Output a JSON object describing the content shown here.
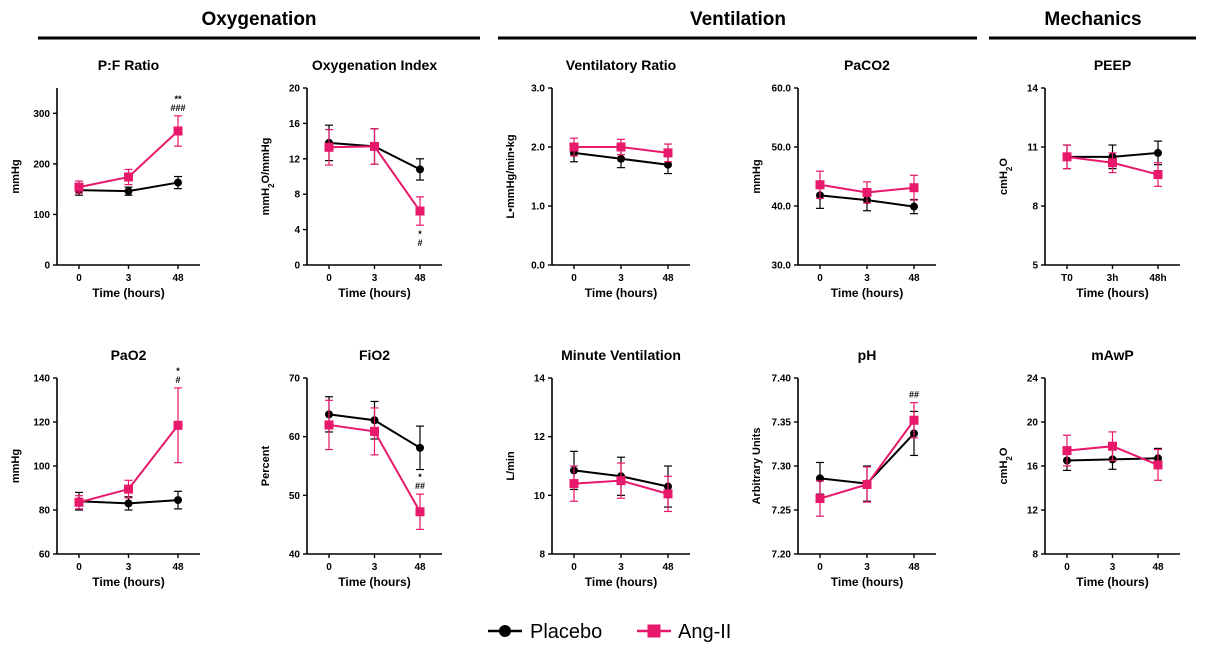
{
  "sections": [
    {
      "label": "Oxygenation"
    },
    {
      "label": "Ventilation"
    },
    {
      "label": "Mechanics"
    }
  ],
  "legend": [
    {
      "label": "Placebo",
      "color": "#000000",
      "marker": "circle"
    },
    {
      "label": "Ang-II",
      "color": "#e8186b",
      "marker": "square"
    }
  ],
  "colors": {
    "placebo": "#000000",
    "angii": "#e8186b"
  },
  "chart_data": [
    {
      "type": "line",
      "title": "P:F Ratio",
      "ylabel": "mmHg",
      "xlabel": "Time (hours)",
      "categories": [
        "0",
        "3",
        "48"
      ],
      "ylim": [
        0,
        350
      ],
      "yticks": [
        "0",
        "100",
        "200",
        "300"
      ],
      "ytick_values": [
        0,
        100,
        200,
        300
      ],
      "series": [
        {
          "name": "Placebo",
          "values": [
            148,
            146,
            163
          ],
          "err": [
            10,
            8,
            12
          ]
        },
        {
          "name": "Ang-II",
          "values": [
            154,
            174,
            265
          ],
          "err": [
            12,
            15,
            30
          ]
        }
      ],
      "annotations": [
        {
          "category": "48",
          "lines": [
            "**",
            "###"
          ]
        }
      ]
    },
    {
      "type": "line",
      "title": "Oxygenation Index",
      "ylabel": "mmH2O/mmHg",
      "ylabel_sub": "2",
      "xlabel": "Time (hours)",
      "categories": [
        "0",
        "3",
        "48"
      ],
      "ylim": [
        0,
        20
      ],
      "yticks": [
        "0",
        "4",
        "8",
        "12",
        "16",
        "20"
      ],
      "ytick_values": [
        0,
        4,
        8,
        12,
        16,
        20
      ],
      "series": [
        {
          "name": "Placebo",
          "values": [
            13.8,
            13.4,
            10.8
          ],
          "err": [
            2.0,
            2.0,
            1.2
          ]
        },
        {
          "name": "Ang-II",
          "values": [
            13.3,
            13.4,
            6.1
          ],
          "err": [
            2.0,
            2.0,
            1.6
          ]
        }
      ],
      "annotations": [
        {
          "category": "48",
          "lines": [
            "*",
            "#"
          ],
          "below": true
        }
      ]
    },
    {
      "type": "line",
      "title": "Ventilatory Ratio",
      "ylabel": "L•mmHg/min•kg",
      "xlabel": "Time (hours)",
      "categories": [
        "0",
        "3",
        "48"
      ],
      "ylim": [
        0,
        3
      ],
      "yticks": [
        "0.0",
        "1.0",
        "2.0",
        "3.0"
      ],
      "ytick_values": [
        0,
        1,
        2,
        3
      ],
      "series": [
        {
          "name": "Placebo",
          "values": [
            1.9,
            1.8,
            1.7
          ],
          "err": [
            0.15,
            0.15,
            0.15
          ]
        },
        {
          "name": "Ang-II",
          "values": [
            2.0,
            2.0,
            1.9
          ],
          "err": [
            0.15,
            0.13,
            0.15
          ]
        }
      ],
      "annotations": []
    },
    {
      "type": "line",
      "title": "PaCO2",
      "ylabel": "mmHg",
      "xlabel": "Time (hours)",
      "categories": [
        "0",
        "3",
        "48"
      ],
      "ylim": [
        30,
        60
      ],
      "yticks": [
        "30.0",
        "40.0",
        "50.0",
        "60.0"
      ],
      "ytick_values": [
        30,
        40,
        50,
        60
      ],
      "series": [
        {
          "name": "Placebo",
          "values": [
            41.8,
            41.0,
            39.9
          ],
          "err": [
            2.2,
            1.8,
            1.2
          ]
        },
        {
          "name": "Ang-II",
          "values": [
            43.6,
            42.3,
            43.1
          ],
          "err": [
            2.3,
            1.8,
            2.1
          ]
        }
      ],
      "annotations": []
    },
    {
      "type": "line",
      "title": "PEEP",
      "ylabel": "cmH2O",
      "ylabel_sub": "2",
      "xlabel": "Time (hours)",
      "categories": [
        "T0",
        "3h",
        "48h"
      ],
      "ylim": [
        5,
        14
      ],
      "yticks": [
        "5",
        "8",
        "11",
        "14"
      ],
      "ytick_values": [
        5,
        8,
        11,
        14
      ],
      "series": [
        {
          "name": "Placebo",
          "values": [
            10.5,
            10.5,
            10.7
          ],
          "err": [
            0.6,
            0.6,
            0.6
          ]
        },
        {
          "name": "Ang-II",
          "values": [
            10.5,
            10.2,
            9.6
          ],
          "err": [
            0.6,
            0.5,
            0.6
          ]
        }
      ],
      "annotations": []
    },
    {
      "type": "line",
      "title": "PaO2",
      "ylabel": "mmHg",
      "xlabel": "Time (hours)",
      "categories": [
        "0",
        "3",
        "48"
      ],
      "ylim": [
        60,
        140
      ],
      "yticks": [
        "60",
        "80",
        "100",
        "120",
        "140"
      ],
      "ytick_values": [
        60,
        80,
        100,
        120,
        140
      ],
      "series": [
        {
          "name": "Placebo",
          "values": [
            84,
            83,
            84.5
          ],
          "err": [
            4,
            3,
            4
          ]
        },
        {
          "name": "Ang-II",
          "values": [
            83.5,
            89.5,
            118.5
          ],
          "err": [
            3,
            4,
            17
          ]
        }
      ],
      "annotations": [
        {
          "category": "48",
          "lines": [
            "*",
            "#"
          ]
        }
      ]
    },
    {
      "type": "line",
      "title": "FiO2",
      "ylabel": "Percent",
      "xlabel": "Time (hours)",
      "categories": [
        "0",
        "3",
        "48"
      ],
      "ylim": [
        40,
        70
      ],
      "yticks": [
        "40",
        "50",
        "60",
        "70"
      ],
      "ytick_values": [
        40,
        50,
        60,
        70
      ],
      "series": [
        {
          "name": "Placebo",
          "values": [
            63.8,
            62.8,
            58.1
          ],
          "err": [
            3.0,
            3.2,
            3.7
          ]
        },
        {
          "name": "Ang-II",
          "values": [
            62.0,
            60.9,
            47.2
          ],
          "err": [
            4.2,
            4.0,
            3.0
          ]
        }
      ],
      "annotations": [
        {
          "category": "48",
          "lines": [
            "*",
            "##"
          ]
        }
      ]
    },
    {
      "type": "line",
      "title": "Minute Ventilation",
      "ylabel": "L/min",
      "xlabel": "Time (hours)",
      "categories": [
        "0",
        "3",
        "48"
      ],
      "ylim": [
        8,
        14
      ],
      "yticks": [
        "8",
        "10",
        "12",
        "14"
      ],
      "ytick_values": [
        8,
        10,
        12,
        14
      ],
      "series": [
        {
          "name": "Placebo",
          "values": [
            10.85,
            10.65,
            10.3
          ],
          "err": [
            0.65,
            0.65,
            0.7
          ]
        },
        {
          "name": "Ang-II",
          "values": [
            10.4,
            10.5,
            10.05
          ],
          "err": [
            0.6,
            0.6,
            0.6
          ]
        }
      ],
      "annotations": []
    },
    {
      "type": "line",
      "title": "pH",
      "ylabel": "Arbitrary Units",
      "xlabel": "Time (hours)",
      "categories": [
        "0",
        "3",
        "48"
      ],
      "ylim": [
        7.2,
        7.4
      ],
      "yticks": [
        "7.20",
        "7.25",
        "7.30",
        "7.35",
        "7.40"
      ],
      "ytick_values": [
        7.2,
        7.25,
        7.3,
        7.35,
        7.4
      ],
      "series": [
        {
          "name": "Placebo",
          "values": [
            7.286,
            7.28,
            7.337
          ],
          "err": [
            0.018,
            0.02,
            0.025
          ]
        },
        {
          "name": "Ang-II",
          "values": [
            7.263,
            7.279,
            7.352
          ],
          "err": [
            0.02,
            0.02,
            0.02
          ]
        }
      ],
      "annotations": [
        {
          "category": "48",
          "lines": [
            "##"
          ]
        }
      ]
    },
    {
      "type": "line",
      "title": "mAwP",
      "ylabel": "cmH2O",
      "ylabel_sub": "2",
      "xlabel": "Time (hours)",
      "categories": [
        "0",
        "3",
        "48"
      ],
      "ylim": [
        8,
        24
      ],
      "yticks": [
        "8",
        "12",
        "16",
        "20",
        "24"
      ],
      "ytick_values": [
        8,
        12,
        16,
        20,
        24
      ],
      "series": [
        {
          "name": "Placebo",
          "values": [
            16.5,
            16.6,
            16.7
          ],
          "err": [
            0.9,
            0.9,
            0.9
          ]
        },
        {
          "name": "Ang-II",
          "values": [
            17.4,
            17.8,
            16.1
          ],
          "err": [
            1.4,
            1.3,
            1.4
          ]
        }
      ],
      "annotations": []
    }
  ]
}
